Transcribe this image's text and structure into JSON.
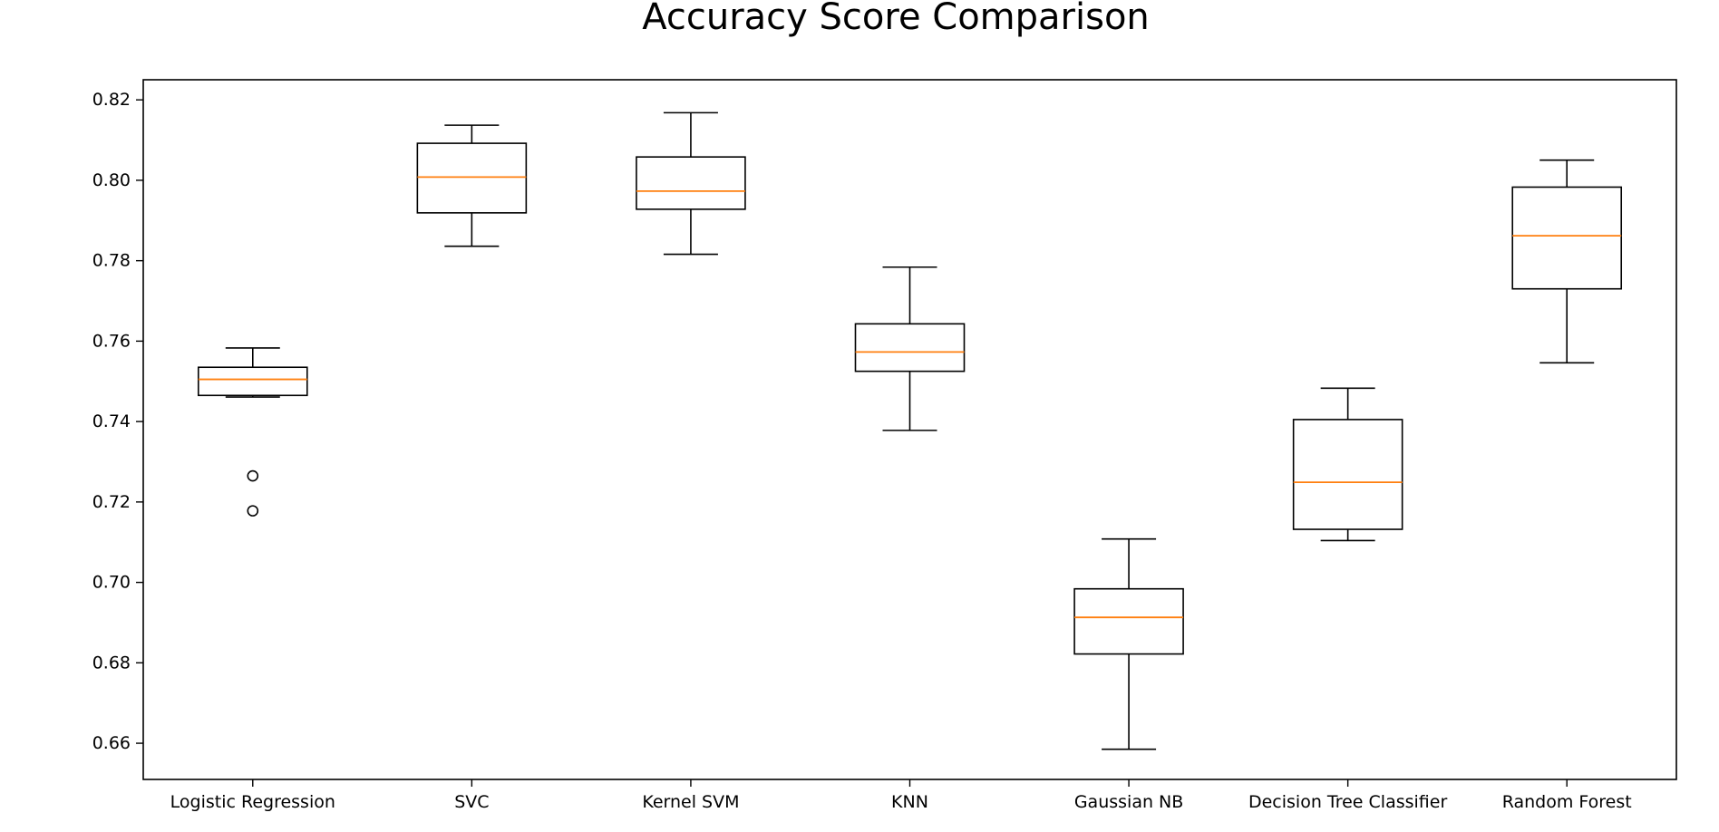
{
  "chart_data": {
    "type": "boxplot",
    "title": "Accuracy Score Comparison",
    "xlabel": "",
    "ylabel": "",
    "ylim": [
      0.651,
      0.825
    ],
    "yticks": [
      0.66,
      0.68,
      0.7,
      0.72,
      0.74,
      0.76,
      0.78,
      0.8,
      0.82
    ],
    "ytick_labels": [
      "0.66",
      "0.68",
      "0.70",
      "0.72",
      "0.74",
      "0.76",
      "0.78",
      "0.80",
      "0.82"
    ],
    "grid": false,
    "legend": "none",
    "colors": {
      "box": "#000000",
      "median": "#ff7f0e",
      "background": "#ffffff"
    },
    "categories": [
      "Logistic Regression",
      "SVC",
      "Kernel SVM",
      "KNN",
      "Gaussian NB",
      "Decision Tree Classifier",
      "Random Forest"
    ],
    "boxes": [
      {
        "whislo": 0.7461,
        "q1": 0.7465,
        "med": 0.7505,
        "q3": 0.7535,
        "whishi": 0.7583,
        "fliers": [
          0.7265,
          0.7178
        ]
      },
      {
        "whislo": 0.7836,
        "q1": 0.7919,
        "med": 0.8008,
        "q3": 0.8092,
        "whishi": 0.8137,
        "fliers": []
      },
      {
        "whislo": 0.7816,
        "q1": 0.7928,
        "med": 0.7973,
        "q3": 0.8058,
        "whishi": 0.8168,
        "fliers": []
      },
      {
        "whislo": 0.7378,
        "q1": 0.7525,
        "med": 0.7573,
        "q3": 0.7643,
        "whishi": 0.7784,
        "fliers": []
      },
      {
        "whislo": 0.6585,
        "q1": 0.6822,
        "med": 0.6913,
        "q3": 0.6984,
        "whishi": 0.7108,
        "fliers": []
      },
      {
        "whislo": 0.7104,
        "q1": 0.7132,
        "med": 0.7249,
        "q3": 0.7405,
        "whishi": 0.7483,
        "fliers": []
      },
      {
        "whislo": 0.7546,
        "q1": 0.773,
        "med": 0.7862,
        "q3": 0.7983,
        "whishi": 0.805,
        "fliers": []
      }
    ]
  }
}
